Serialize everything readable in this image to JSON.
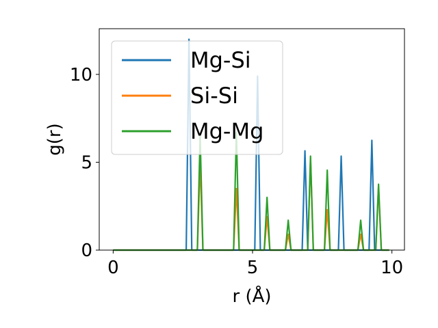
{
  "chart_data": {
    "type": "line",
    "title": "",
    "xlabel": "r (Å)",
    "ylabel": "g(r)",
    "xlim": [
      -0.5,
      10.45
    ],
    "ylim": [
      0,
      12.6
    ],
    "xticks": [
      0,
      5,
      10
    ],
    "yticks": [
      0,
      5,
      10
    ],
    "xtick_labels": [
      "0",
      "5",
      "10"
    ],
    "ytick_labels": [
      "0",
      "5",
      "10"
    ],
    "legend_position": "upper-left",
    "grid": false,
    "x_range": [
      0,
      9.9
    ],
    "peak_half_width": 0.1,
    "series": [
      {
        "name": "Mg-Si",
        "color": "#1f77b4",
        "peaks": [
          {
            "r": 2.72,
            "g": 12.0
          },
          {
            "r": 5.18,
            "g": 9.9
          },
          {
            "r": 6.88,
            "g": 5.65
          },
          {
            "r": 8.18,
            "g": 5.35
          },
          {
            "r": 9.28,
            "g": 6.25
          }
        ]
      },
      {
        "name": "Si-Si",
        "color": "#ff7f0e",
        "peaks": [
          {
            "r": 3.12,
            "g": 5.0
          },
          {
            "r": 4.42,
            "g": 3.5
          },
          {
            "r": 5.52,
            "g": 1.9
          },
          {
            "r": 6.28,
            "g": 0.9
          },
          {
            "r": 7.08,
            "g": 5.2
          },
          {
            "r": 7.68,
            "g": 2.3
          },
          {
            "r": 8.88,
            "g": 0.9
          },
          {
            "r": 9.52,
            "g": 3.6
          }
        ]
      },
      {
        "name": "Mg-Mg",
        "color": "#2ca02c",
        "peaks": [
          {
            "r": 3.12,
            "g": 6.5
          },
          {
            "r": 4.42,
            "g": 6.7
          },
          {
            "r": 5.52,
            "g": 3.0
          },
          {
            "r": 6.28,
            "g": 1.7
          },
          {
            "r": 7.08,
            "g": 5.35
          },
          {
            "r": 7.68,
            "g": 4.55
          },
          {
            "r": 8.88,
            "g": 1.7
          },
          {
            "r": 9.52,
            "g": 3.75
          }
        ]
      }
    ]
  }
}
